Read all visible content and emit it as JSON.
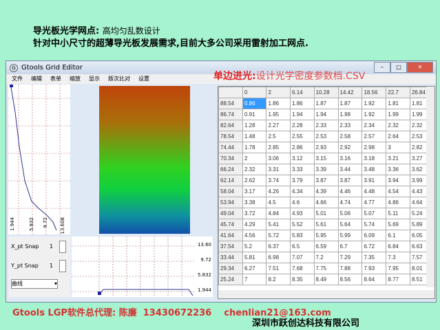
{
  "heading": {
    "title": "导光板光学网点:",
    "subtitle": "高均匀乱数设计",
    "line2": "针对中小尺寸的超薄导光板发展需求,目前大多公司采用雷射加工网点."
  },
  "window": {
    "title": "Gtools Grid Editor",
    "menu": [
      "文件",
      "编辑",
      "表单",
      "缩放",
      "显示",
      "版次比对",
      "设置"
    ]
  },
  "overlay": {
    "label": "单边进光:",
    "file": "设计光学密度参数档.CSV"
  },
  "profile_axis": [
    "1.944",
    "5.832",
    "9.72",
    "13.608"
  ],
  "controls": {
    "x_label": "X_pt Snap",
    "x_value": "1",
    "y_label": "Y_pt Snap",
    "y_value": "1",
    "mode": "曲线"
  },
  "bottom_axis": [
    "13.60",
    "9.72",
    "5.832",
    "1.944"
  ],
  "grid": {
    "columns": [
      "0",
      "2",
      "6.14",
      "10.28",
      "14.42",
      "18.56",
      "22.7",
      "26.84"
    ],
    "rows": [
      {
        "h": "88.54",
        "v": [
          "0.86",
          "1.86",
          "1.86",
          "1.87",
          "1.87",
          "1.92",
          "1.81",
          "1.81"
        ]
      },
      {
        "h": "86.74",
        "v": [
          "0.91",
          "1.95",
          "1.94",
          "1.94",
          "1.98",
          "1.92",
          "1.99",
          "1.99"
        ]
      },
      {
        "h": "82.64",
        "v": [
          "1.28",
          "2.27",
          "2.28",
          "2.33",
          "2.33",
          "2.34",
          "2.32",
          "2.32"
        ]
      },
      {
        "h": "78.54",
        "v": [
          "1.48",
          "2.5",
          "2.55",
          "2.53",
          "2.58",
          "2.57",
          "2.64",
          "2.53"
        ]
      },
      {
        "h": "74.44",
        "v": [
          "1.78",
          "2.85",
          "2.86",
          "2.93",
          "2.92",
          "2.98",
          "3",
          "2.82"
        ]
      },
      {
        "h": "70.34",
        "v": [
          "2",
          "3.06",
          "3.12",
          "3.15",
          "3.16",
          "3.18",
          "3.21",
          "3.27"
        ]
      },
      {
        "h": "66.24",
        "v": [
          "2.32",
          "3.31",
          "3.33",
          "3.39",
          "3.44",
          "3.48",
          "3.36",
          "3.62"
        ]
      },
      {
        "h": "62.14",
        "v": [
          "2.62",
          "3.74",
          "3.79",
          "3.87",
          "3.87",
          "3.91",
          "3.94",
          "3.99"
        ]
      },
      {
        "h": "58.04",
        "v": [
          "3.17",
          "4.26",
          "4.34",
          "4.39",
          "4.46",
          "4.48",
          "4.54",
          "4.43"
        ]
      },
      {
        "h": "53.94",
        "v": [
          "3.38",
          "4.5",
          "4.6",
          "4.66",
          "4.74",
          "4.77",
          "4.86",
          "4.64"
        ]
      },
      {
        "h": "49.04",
        "v": [
          "3.72",
          "4.84",
          "4.93",
          "5.01",
          "5.06",
          "5.07",
          "5.11",
          "5.24"
        ]
      },
      {
        "h": "45.74",
        "v": [
          "4.29",
          "5.41",
          "5.52",
          "5.61",
          "5.64",
          "5.74",
          "5.69",
          "5.89"
        ]
      },
      {
        "h": "41.64",
        "v": [
          "4.56",
          "5.72",
          "5.83",
          "5.95",
          "5.99",
          "6.09",
          "6.1",
          "6.05"
        ]
      },
      {
        "h": "37.54",
        "v": [
          "5.2",
          "6.37",
          "6.5",
          "6.59",
          "6.7",
          "6.72",
          "6.84",
          "6.63"
        ]
      },
      {
        "h": "33.44",
        "v": [
          "5.81",
          "6.98",
          "7.07",
          "7.2",
          "7.29",
          "7.35",
          "7.3",
          "7.57"
        ]
      },
      {
        "h": "29.34",
        "v": [
          "6.27",
          "7.51",
          "7.68",
          "7.75",
          "7.88",
          "7.93",
          "7.95",
          "8.01"
        ]
      },
      {
        "h": "25.24",
        "v": [
          "7",
          "8.2",
          "8.35",
          "8.49",
          "8.56",
          "8.64",
          "8.77",
          "8.51"
        ]
      }
    ]
  },
  "footer": {
    "agent": "Gtools LGP软件总代理:",
    "name": "陈廉",
    "phone": "13430672236",
    "email": "chenlian21@163.com",
    "company": "深圳市跃创达科技有限公司"
  }
}
